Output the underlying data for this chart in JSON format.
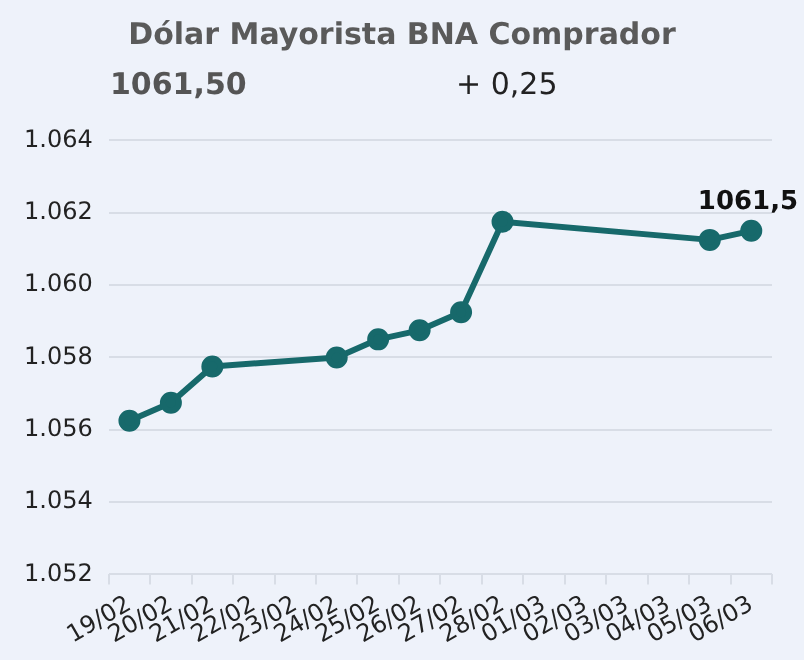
{
  "chart_data": {
    "type": "line",
    "title": "Dólar Mayorista BNA Comprador",
    "subtitle": "1061,50",
    "annotations": [
      "+ 0,25",
      {
        "text": "1061,5",
        "x": "06/03",
        "y": 1061.5
      }
    ],
    "categories": [
      "19/02",
      "20/02",
      "21/02",
      "22/02",
      "23/02",
      "24/02",
      "25/02",
      "26/02",
      "27/02",
      "28/02",
      "01/03",
      "02/03",
      "03/03",
      "04/03",
      "05/03",
      "06/03"
    ],
    "series": [
      {
        "color": "#17696b",
        "values": [
          1056.25,
          1056.75,
          1057.75,
          null,
          null,
          1058.0,
          1058.5,
          1058.75,
          1059.25,
          1061.75,
          null,
          null,
          null,
          null,
          1061.25,
          1061.5
        ]
      }
    ],
    "ylim": [
      1052,
      1064
    ],
    "yticks": [
      {
        "value": 1052,
        "label": "1.052"
      },
      {
        "value": 1054,
        "label": "1.054"
      },
      {
        "value": 1056,
        "label": "1.056"
      },
      {
        "value": 1058,
        "label": "1.058"
      },
      {
        "value": 1060,
        "label": "1.060"
      },
      {
        "value": 1062,
        "label": "1.062"
      },
      {
        "value": 1064,
        "label": "1.064"
      }
    ],
    "grid": "y",
    "legend": false,
    "marker": "circle",
    "line_style": "solid"
  }
}
